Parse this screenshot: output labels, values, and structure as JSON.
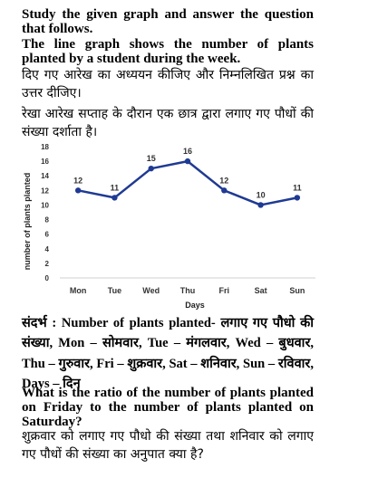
{
  "text": {
    "q_en_1": "Study the given graph and answer the question that follows.",
    "q_en_2": "The line graph shows the number of plants planted by a student during the week.",
    "q_hi_1": "दिए गए आरेख का अध्ययन कीजिए और निम्नलिखित प्रश्न का उत्तर दीजिए।",
    "q_hi_2": "रेखा आरेख सप्ताह के दौरान एक छात्र द्वारा लगाए गए पौधों की संख्या दर्शाता है।",
    "reference_label": "संदर्भ :",
    "reference_body": "Number of plants planted- लगाए गए पौधो की संख्या, Mon – सोमवार, Tue – मंगलवार, Wed – बुधवार, Thu – गुरुवार, Fri – शुक्रवार, Sat – शनिवार, Sun – रविवार, Days – दिन",
    "question_en": "What is the ratio of the number of plants planted on Friday to the number of plants planted on Saturday?",
    "question_hi": "शुक्रवार को लगाए गए पौधो की संख्या तथा शनिवार को लगाए गए पौधों की संख्या का अनुपात क्या है?"
  },
  "chart_data": {
    "type": "line",
    "categories": [
      "Mon",
      "Tue",
      "Wed",
      "Thu",
      "Fri",
      "Sat",
      "Sun"
    ],
    "values": [
      12,
      11,
      15,
      16,
      12,
      10,
      11
    ],
    "xlabel": "Days",
    "ylabel": "number of plants planted",
    "ylim": [
      0,
      18
    ],
    "yticks": [
      0,
      2,
      4,
      6,
      8,
      10,
      12,
      14,
      16,
      18
    ],
    "grid": false,
    "data_labels": true,
    "line_color": "#1f3a93",
    "label_color": "#333333",
    "axis_color": "#d0d0d0"
  }
}
